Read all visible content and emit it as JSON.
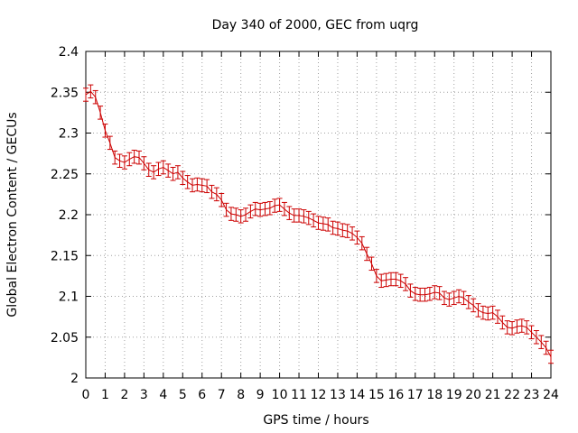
{
  "chart_data": {
    "type": "line",
    "title": "Day 340 of 2000, GEC from uqrg",
    "xlabel": "GPS time / hours",
    "ylabel": "Global Electron Content / GECUs",
    "xlim": [
      0,
      24
    ],
    "ylim": [
      2,
      2.4
    ],
    "x_ticks": [
      "0",
      "1",
      "2",
      "3",
      "4",
      "5",
      "6",
      "7",
      "8",
      "9",
      "10",
      "11",
      "12",
      "13",
      "14",
      "15",
      "16",
      "17",
      "18",
      "19",
      "20",
      "21",
      "22",
      "23",
      "24"
    ],
    "y_ticks": [
      "2",
      "2.05",
      "2.1",
      "2.15",
      "2.2",
      "2.25",
      "2.3",
      "2.35",
      "2.4"
    ],
    "grid": true,
    "legend": "none",
    "series": [
      {
        "color": "#cc0000",
        "error": 0.008,
        "x": [
          0,
          0.25,
          0.5,
          0.75,
          1,
          1.25,
          1.5,
          1.75,
          2,
          2.25,
          2.5,
          2.75,
          3,
          3.25,
          3.5,
          3.75,
          4,
          4.25,
          4.5,
          4.75,
          5,
          5.25,
          5.5,
          5.75,
          6,
          6.25,
          6.5,
          6.75,
          7,
          7.25,
          7.5,
          7.75,
          8,
          8.25,
          8.5,
          8.75,
          9,
          9.25,
          9.5,
          9.75,
          10,
          10.25,
          10.5,
          10.75,
          11,
          11.25,
          11.5,
          11.75,
          12,
          12.25,
          12.5,
          12.75,
          13,
          13.25,
          13.5,
          13.75,
          14,
          14.25,
          14.5,
          14.75,
          15,
          15.25,
          15.5,
          15.75,
          16,
          16.25,
          16.5,
          16.75,
          17,
          17.25,
          17.5,
          17.75,
          18,
          18.25,
          18.5,
          18.75,
          19,
          19.25,
          19.5,
          19.75,
          20,
          20.25,
          20.5,
          20.75,
          21,
          21.25,
          21.5,
          21.75,
          22,
          22.25,
          22.5,
          22.75,
          23,
          23.25,
          23.5,
          23.75,
          24
        ],
        "y": [
          2.347,
          2.351,
          2.344,
          2.325,
          2.303,
          2.288,
          2.27,
          2.266,
          2.264,
          2.268,
          2.271,
          2.27,
          2.263,
          2.255,
          2.252,
          2.256,
          2.258,
          2.254,
          2.25,
          2.252,
          2.245,
          2.24,
          2.236,
          2.237,
          2.236,
          2.235,
          2.228,
          2.225,
          2.218,
          2.206,
          2.201,
          2.2,
          2.198,
          2.2,
          2.204,
          2.207,
          2.206,
          2.207,
          2.208,
          2.211,
          2.212,
          2.207,
          2.202,
          2.199,
          2.199,
          2.198,
          2.196,
          2.193,
          2.19,
          2.189,
          2.188,
          2.184,
          2.183,
          2.181,
          2.18,
          2.177,
          2.172,
          2.165,
          2.152,
          2.14,
          2.125,
          2.119,
          2.12,
          2.121,
          2.121,
          2.119,
          2.115,
          2.107,
          2.103,
          2.102,
          2.102,
          2.103,
          2.105,
          2.104,
          2.098,
          2.096,
          2.098,
          2.1,
          2.098,
          2.093,
          2.089,
          2.083,
          2.08,
          2.079,
          2.08,
          2.075,
          2.068,
          2.062,
          2.061,
          2.063,
          2.064,
          2.062,
          2.056,
          2.05,
          2.044,
          2.037,
          2.026
        ]
      }
    ]
  }
}
